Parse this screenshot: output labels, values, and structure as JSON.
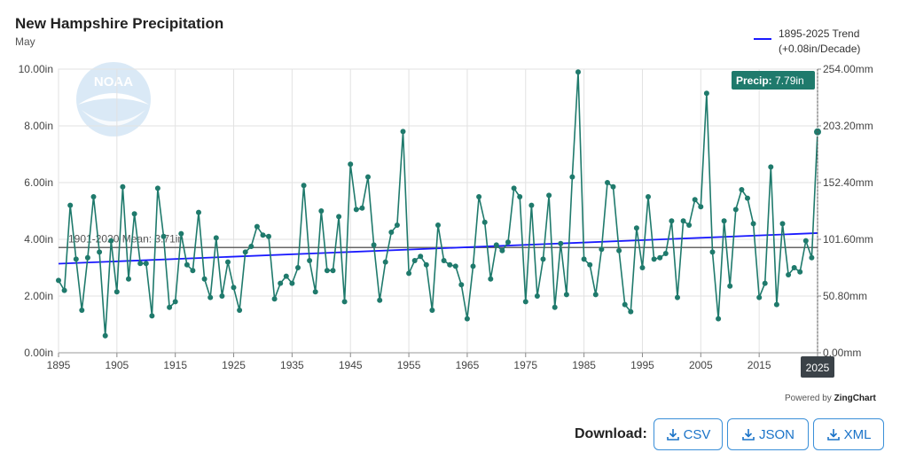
{
  "header": {
    "title": "New Hampshire Precipitation",
    "subtitle": "May"
  },
  "legend": {
    "trend_label": "1895-2025 Trend",
    "trend_rate": "(+0.08in/Decade)"
  },
  "tooltip": {
    "label": "Precip:",
    "value": "7.79in",
    "year": "2025"
  },
  "mean_label": "1901-2020 Mean: 3.71in",
  "powered_by": {
    "prefix": "Powered by",
    "brand": "ZingChart"
  },
  "download": {
    "label": "Download:",
    "buttons": [
      "CSV",
      "JSON",
      "XML"
    ]
  },
  "colors": {
    "series": "#1f7a6c",
    "trend": "#1a1aff",
    "mean": "#666666",
    "tooltip_bg": "#1f7a6c",
    "accent": "#3a8fd8"
  },
  "chart_data": {
    "type": "line",
    "x": [
      1895,
      1896,
      1897,
      1898,
      1899,
      1900,
      1901,
      1902,
      1903,
      1904,
      1905,
      1906,
      1907,
      1908,
      1909,
      1910,
      1911,
      1912,
      1913,
      1914,
      1915,
      1916,
      1917,
      1918,
      1919,
      1920,
      1921,
      1922,
      1923,
      1924,
      1925,
      1926,
      1927,
      1928,
      1929,
      1930,
      1931,
      1932,
      1933,
      1934,
      1935,
      1936,
      1937,
      1938,
      1939,
      1940,
      1941,
      1942,
      1943,
      1944,
      1945,
      1946,
      1947,
      1948,
      1949,
      1950,
      1951,
      1952,
      1953,
      1954,
      1955,
      1956,
      1957,
      1958,
      1959,
      1960,
      1961,
      1962,
      1963,
      1964,
      1965,
      1966,
      1967,
      1968,
      1969,
      1970,
      1971,
      1972,
      1973,
      1974,
      1975,
      1976,
      1977,
      1978,
      1979,
      1980,
      1981,
      1982,
      1983,
      1984,
      1985,
      1986,
      1987,
      1988,
      1989,
      1990,
      1991,
      1992,
      1993,
      1994,
      1995,
      1996,
      1997,
      1998,
      1999,
      2000,
      2001,
      2002,
      2003,
      2004,
      2005,
      2006,
      2007,
      2008,
      2009,
      2010,
      2011,
      2012,
      2013,
      2014,
      2015,
      2016,
      2017,
      2018,
      2019,
      2020,
      2021,
      2022,
      2023,
      2024,
      2025
    ],
    "series": [
      {
        "name": "Precip",
        "values": [
          2.55,
          2.2,
          5.2,
          3.3,
          1.5,
          3.35,
          5.5,
          3.55,
          0.6,
          3.95,
          2.15,
          5.85,
          2.6,
          4.9,
          3.15,
          3.15,
          1.3,
          5.8,
          4.1,
          1.6,
          1.8,
          4.2,
          3.1,
          2.9,
          4.95,
          2.6,
          1.95,
          4.05,
          2.0,
          3.2,
          2.3,
          1.5,
          3.55,
          3.75,
          4.45,
          4.15,
          4.1,
          1.9,
          2.45,
          2.7,
          2.45,
          3.0,
          5.9,
          3.25,
          2.15,
          5.0,
          2.9,
          2.9,
          4.8,
          1.8,
          6.65,
          5.05,
          5.1,
          6.2,
          3.8,
          1.85,
          3.2,
          4.25,
          4.5,
          7.8,
          2.8,
          3.25,
          3.4,
          3.1,
          1.5,
          4.5,
          3.25,
          3.1,
          3.05,
          2.4,
          1.2,
          3.05,
          5.5,
          4.6,
          2.6,
          3.8,
          3.6,
          3.9,
          5.8,
          5.5,
          1.8,
          5.2,
          2.0,
          3.3,
          5.55,
          1.6,
          3.85,
          2.05,
          6.2,
          9.9,
          3.3,
          3.1,
          2.05,
          3.65,
          6.0,
          5.85,
          3.6,
          1.7,
          1.45,
          4.4,
          3.0,
          5.5,
          3.3,
          3.35,
          3.5,
          4.65,
          1.95,
          4.65,
          4.5,
          5.4,
          5.15,
          9.15,
          3.55,
          1.2,
          4.65,
          2.35,
          5.05,
          5.75,
          5.45,
          4.55,
          1.95,
          2.45,
          6.55,
          1.7,
          4.55,
          2.75,
          3.0,
          2.85,
          3.95,
          3.35,
          7.79
        ]
      }
    ],
    "trend": {
      "name": "1895-2025 Trend",
      "start": 3.14,
      "end": 4.22
    },
    "mean": {
      "label": "1901-2020 Mean: 3.71in",
      "value": 3.71
    },
    "xlim": [
      1895,
      2025
    ],
    "ylim": [
      0,
      10
    ],
    "x_ticks": [
      1895,
      1905,
      1915,
      1925,
      1935,
      1945,
      1955,
      1965,
      1975,
      1985,
      1995,
      2005,
      2015,
      2025
    ],
    "y_ticks_left": [
      "0.00in",
      "2.00in",
      "4.00in",
      "6.00in",
      "8.00in",
      "10.00in"
    ],
    "y_ticks_right": [
      "0.00mm",
      "50.80mm",
      "101.60mm",
      "152.40mm",
      "203.20mm",
      "254.00mm"
    ],
    "grid": true,
    "legend_position": "top-right"
  }
}
